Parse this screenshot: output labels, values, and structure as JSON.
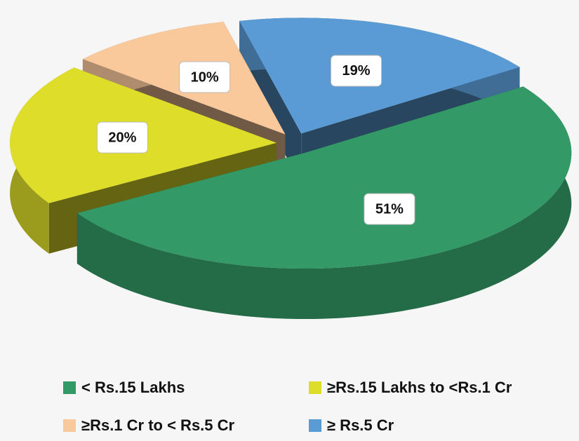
{
  "chart_data": {
    "type": "pie",
    "categories": [
      "< Rs.15 Lakhs",
      "≥Rs.15 Lakhs to <Rs.1 Cr",
      "≥Rs.1 Cr to < Rs.5 Cr",
      "≥ Rs.5 Cr"
    ],
    "values": [
      51,
      20,
      10,
      19
    ],
    "value_labels": [
      "51%",
      "20%",
      "10%",
      "19%"
    ],
    "colors": [
      "#339966",
      "#dede2a",
      "#f9c89b",
      "#5b9bd5"
    ]
  }
}
